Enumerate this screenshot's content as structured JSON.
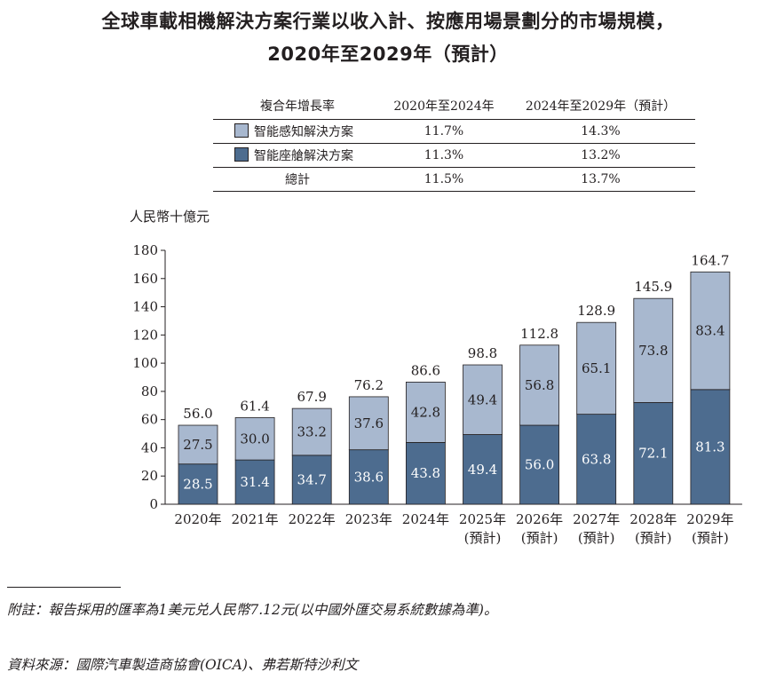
{
  "title_line1": "全球車載相機解決方案行業以收入計、按應用場景劃分的市場規模，",
  "title_line2": "2020年至2029年（預計）",
  "cagr_table": {
    "header": [
      "複合年增長率",
      "2020年至2024年",
      "2024年至2029年（預計）"
    ],
    "rows": [
      {
        "label": "智能感知解決方案",
        "v1": "11.7%",
        "v2": "14.3%",
        "swatch": "#a8b8cf"
      },
      {
        "label": "智能座艙解決方案",
        "v1": "11.3%",
        "v2": "13.2%",
        "swatch": "#4d6c8f"
      },
      {
        "label": "總計",
        "v1": "11.5%",
        "v2": "13.7%"
      }
    ]
  },
  "chart_data": {
    "type": "bar",
    "stacked": true,
    "ylabel": "人民幣十億元",
    "ylim": [
      0,
      180
    ],
    "yticks": [
      0,
      20,
      40,
      60,
      80,
      100,
      120,
      140,
      160,
      180
    ],
    "categories": [
      [
        "2020年"
      ],
      [
        "2021年"
      ],
      [
        "2022年"
      ],
      [
        "2023年"
      ],
      [
        "2024年"
      ],
      [
        "2025年",
        "(預計)"
      ],
      [
        "2026年",
        "(預計)"
      ],
      [
        "2027年",
        "(預計)"
      ],
      [
        "2028年",
        "(預計)"
      ],
      [
        "2029年",
        "(預計)"
      ]
    ],
    "series": [
      {
        "name": "智能座艙解決方案",
        "color": "#4d6c8f",
        "values": [
          28.5,
          31.4,
          34.7,
          38.6,
          43.8,
          49.4,
          56.0,
          63.8,
          72.1,
          81.3
        ],
        "labels": [
          "28.5",
          "31.4",
          "34.7",
          "38.6",
          "43.8",
          "49.4",
          "56.0",
          "63.8",
          "72.1",
          "81.3"
        ]
      },
      {
        "name": "智能感知解決方案",
        "color": "#a8b8cf",
        "values": [
          27.5,
          30.0,
          33.2,
          37.6,
          42.8,
          49.4,
          56.8,
          65.1,
          73.8,
          83.4
        ],
        "labels": [
          "27.5",
          "30.0",
          "33.2",
          "37.6",
          "42.8",
          "49.4",
          "56.8",
          "65.1",
          "73.8",
          "83.4"
        ]
      }
    ],
    "totals": [
      56.0,
      61.4,
      67.9,
      76.2,
      86.6,
      98.8,
      112.8,
      128.9,
      145.9,
      164.7
    ],
    "total_labels": [
      "56.0",
      "61.4",
      "67.9",
      "76.2",
      "86.6",
      "98.8",
      "112.8",
      "128.9",
      "145.9",
      "164.7"
    ]
  },
  "footnote": "附註：報告採用的匯率為1美元兑人民幣7.12元(以中國外匯交易系統數據為準)。",
  "source": "資料來源：國際汽車製造商協會(OICA)、弗若斯特沙利文"
}
